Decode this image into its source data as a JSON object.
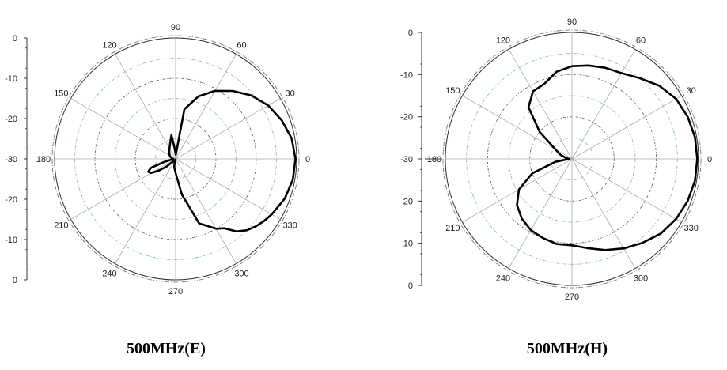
{
  "chart_data": [
    {
      "type": "polar-line",
      "title": "500MHz(E)",
      "r_axis_labels": [
        "0",
        "-10",
        "-20",
        "-30",
        "-20",
        "-10",
        "0"
      ],
      "r_axis": {
        "min_db": -30,
        "max_db": 0
      },
      "angle_labels": [
        "0",
        "30",
        "60",
        "90",
        "120",
        "150",
        "180",
        "210",
        "240",
        "270",
        "300",
        "330"
      ],
      "grid": true,
      "series": [
        {
          "angles_deg": [
            0,
            10,
            20,
            30,
            40,
            50,
            60,
            70,
            80,
            88,
            95,
            100,
            110,
            120,
            130,
            140,
            150,
            160,
            165,
            170,
            175,
            180,
            185,
            190,
            195,
            200,
            205,
            210,
            215,
            220,
            230,
            240,
            250,
            260,
            270,
            275,
            280,
            290,
            300,
            305,
            310,
            315,
            320,
            325,
            330,
            340,
            350,
            360
          ],
          "values_db": [
            -0.3,
            -0.8,
            -2.0,
            -3.5,
            -5.5,
            -8.0,
            -10.5,
            -13.5,
            -17.5,
            -29.0,
            -27.5,
            -24.0,
            -26.0,
            -27.0,
            -27.5,
            -28.0,
            -28.3,
            -28.7,
            -28.9,
            -29.0,
            -29.2,
            -29.4,
            -29.2,
            -28.8,
            -27.0,
            -23.5,
            -22.5,
            -23.0,
            -25.0,
            -27.0,
            -29.5,
            -29.8,
            -29.5,
            -28.0,
            -26.5,
            -25.0,
            -21.0,
            -13.0,
            -10.0,
            -9.0,
            -6.5,
            -5.0,
            -4.0,
            -3.2,
            -2.5,
            -1.2,
            -0.5,
            -0.3
          ]
        }
      ]
    },
    {
      "type": "polar-line",
      "title": "500MHz(H)",
      "r_axis_labels": [
        "0",
        "-10",
        "-20",
        "-30",
        "-20",
        "-10",
        "0"
      ],
      "r_axis": {
        "min_db": -30,
        "max_db": 0
      },
      "angle_labels": [
        "0",
        "30",
        "60",
        "90",
        "120",
        "150",
        "180",
        "210",
        "240",
        "270",
        "300",
        "330"
      ],
      "grid": true,
      "series": [
        {
          "angles_deg": [
            0,
            10,
            20,
            30,
            40,
            50,
            60,
            70,
            80,
            90,
            100,
            110,
            120,
            130,
            140,
            150,
            160,
            170,
            175,
            180,
            185,
            190,
            200,
            210,
            220,
            230,
            240,
            250,
            260,
            270,
            280,
            290,
            300,
            310,
            320,
            330,
            340,
            350,
            360
          ],
          "values_db": [
            -0.3,
            -0.4,
            -0.8,
            -1.5,
            -3.0,
            -5.0,
            -6.5,
            -7.0,
            -7.5,
            -8.0,
            -9.0,
            -11.0,
            -11.5,
            -14.0,
            -20.0,
            -25.5,
            -27.0,
            -28.5,
            -29.0,
            -29.3,
            -29.0,
            -26.0,
            -20.0,
            -15.5,
            -13.0,
            -11.5,
            -10.5,
            -10.0,
            -9.5,
            -9.5,
            -8.5,
            -7.0,
            -5.5,
            -4.0,
            -2.5,
            -1.5,
            -0.8,
            -0.4,
            -0.3
          ]
        }
      ]
    }
  ]
}
